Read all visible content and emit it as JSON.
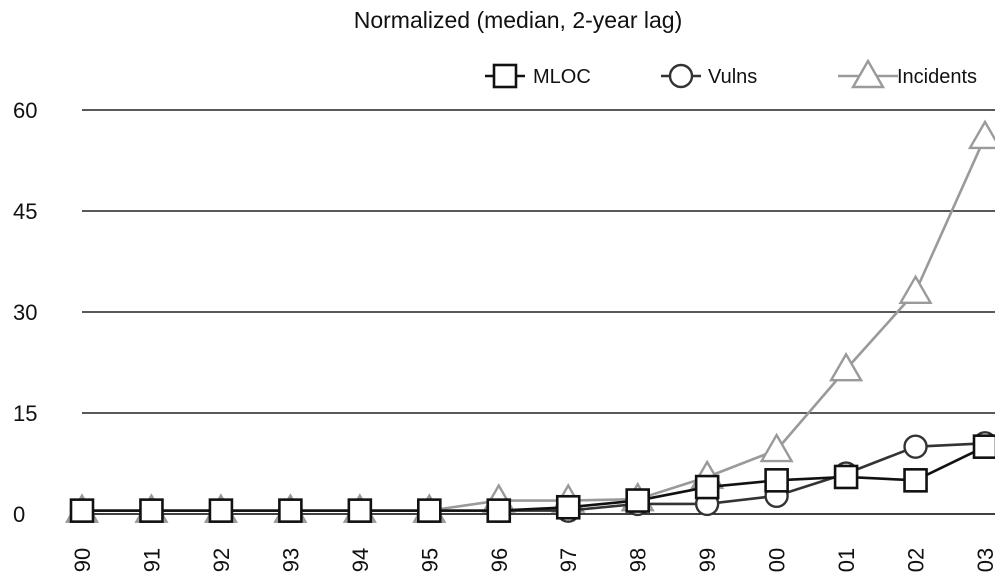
{
  "chart_data": {
    "type": "line",
    "title": "Normalized (median, 2-year lag)",
    "xlabel": "",
    "ylabel": "",
    "categories": [
      "90",
      "91",
      "92",
      "93",
      "94",
      "95",
      "96",
      "97",
      "98",
      "99",
      "00",
      "01",
      "02",
      "03"
    ],
    "ylim": [
      0,
      60
    ],
    "yticks": [
      0,
      15,
      30,
      45,
      60
    ],
    "grid": true,
    "legend_position": "top-right",
    "series": [
      {
        "name": "MLOC",
        "marker": "square",
        "color": "#111111",
        "values": [
          0.5,
          0.5,
          0.5,
          0.5,
          0.5,
          0.5,
          0.5,
          1.0,
          2.0,
          4.0,
          5.0,
          5.5,
          5.0,
          10.0
        ]
      },
      {
        "name": "Vulns",
        "marker": "circle",
        "color": "#333333",
        "values": [
          0.5,
          0.5,
          0.5,
          0.5,
          0.5,
          0.5,
          0.5,
          0.5,
          1.5,
          1.5,
          2.7,
          6.0,
          10.0,
          10.5
        ]
      },
      {
        "name": "Incidents",
        "marker": "triangle",
        "color": "#9a9a9a",
        "values": [
          0.5,
          0.5,
          0.5,
          0.5,
          0.5,
          0.5,
          2.0,
          2.0,
          2.2,
          5.5,
          9.5,
          21.5,
          33.0,
          56.0
        ]
      }
    ]
  }
}
